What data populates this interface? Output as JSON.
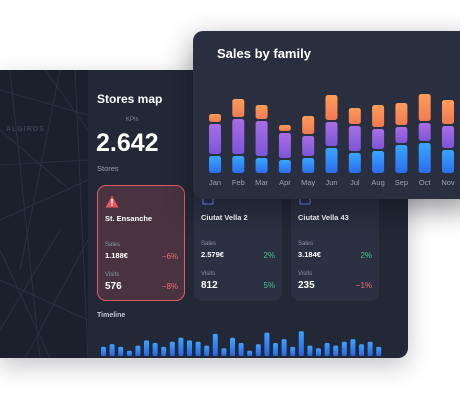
{
  "stores_panel": {
    "title": "Stores map",
    "map_watermark": "ALGIROS",
    "kpis_label": "KPIs",
    "kpi_value": "2.642",
    "kpi_label": "Stores",
    "timeline_label": "Timeline",
    "cards": [
      {
        "name": "St. Ensanche",
        "icon": "warning-triangle-icon",
        "sales_label": "Sales",
        "sales": "1.188€",
        "sales_change": "−6%",
        "visits_label": "Visits",
        "visits": "576",
        "visits_change": "−8%"
      },
      {
        "name": "Ciutat Vella 2",
        "icon": "store-icon",
        "sales_label": "Sales",
        "sales": "2.579€",
        "sales_change": "2%",
        "visits_label": "Visits",
        "visits": "812",
        "visits_change": "5%"
      },
      {
        "name": "Ciutat Vella 43",
        "icon": "store-icon",
        "sales_label": "Sales",
        "sales": "3.184€",
        "sales_change": "2%",
        "visits_label": "Visits",
        "visits": "235",
        "visits_change": "−1%"
      }
    ],
    "timeline_values": [
      0.35,
      0.45,
      0.35,
      0.2,
      0.4,
      0.6,
      0.5,
      0.35,
      0.55,
      0.7,
      0.6,
      0.55,
      0.4,
      0.85,
      0.3,
      0.7,
      0.5,
      0.2,
      0.45,
      0.9,
      0.5,
      0.65,
      0.35,
      0.95,
      0.4,
      0.3,
      0.5,
      0.4,
      0.55,
      0.65,
      0.45,
      0.55,
      0.35
    ]
  },
  "chart_data": {
    "type": "bar",
    "title": "Sales by family",
    "categories": [
      "Jan",
      "Feb",
      "Mar",
      "Apr",
      "May",
      "Jun",
      "Jul",
      "Aug",
      "Sep",
      "Oct",
      "Nov"
    ],
    "series": [
      {
        "values": [
          17,
          17,
          15,
          13,
          15,
          25,
          20,
          22,
          28,
          30,
          23
        ]
      },
      {
        "values": [
          30,
          35,
          35,
          25,
          20,
          24,
          25,
          20,
          16,
          18,
          22
        ]
      },
      {
        "values": [
          8,
          18,
          14,
          6,
          18,
          25,
          16,
          22,
          22,
          27,
          24
        ]
      }
    ],
    "colors": [
      "#2f8dfa",
      "#9b62e0",
      "#f78d52"
    ]
  }
}
